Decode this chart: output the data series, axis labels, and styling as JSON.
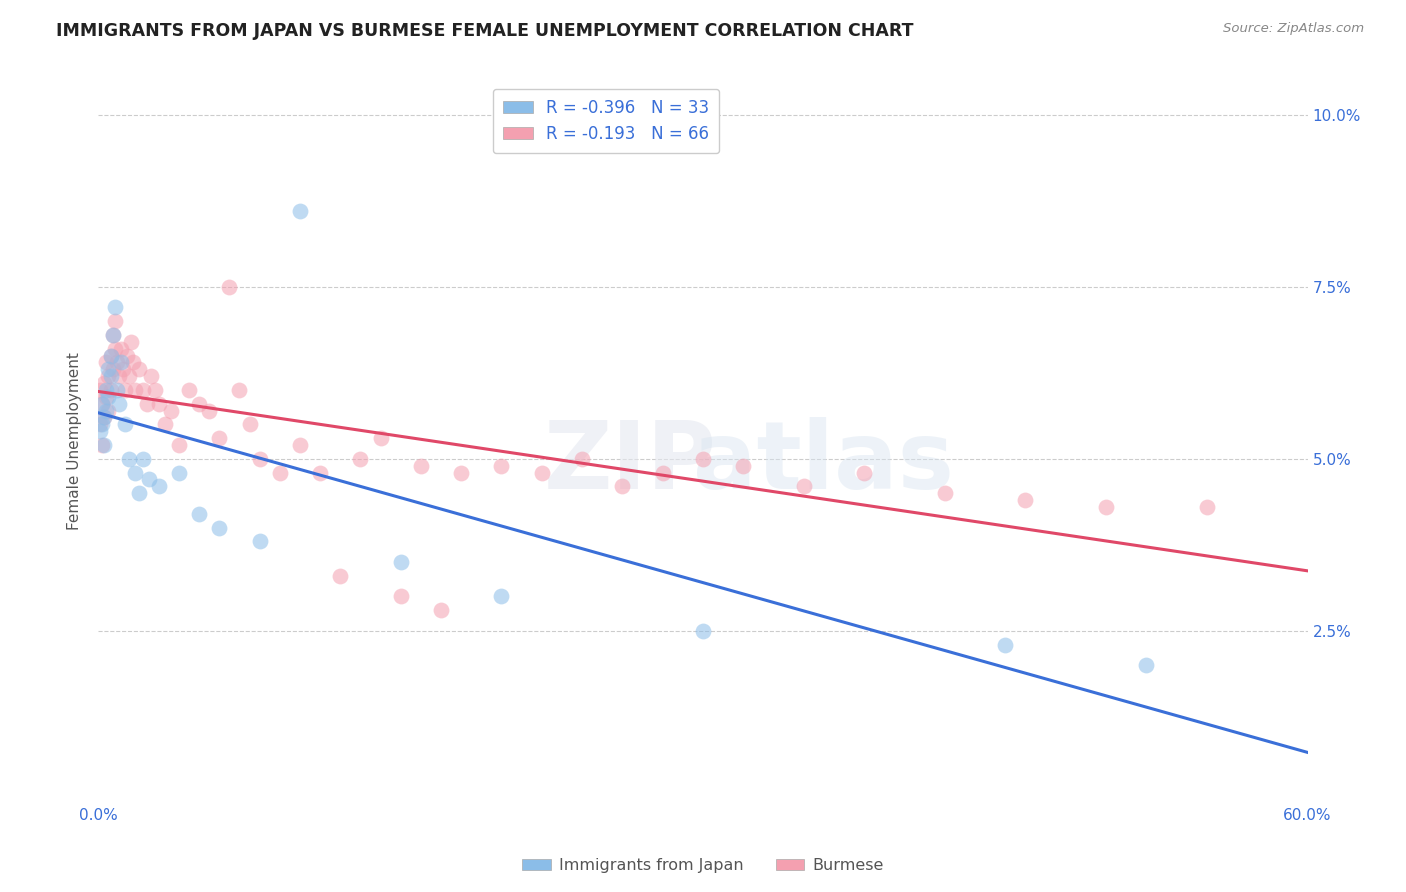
{
  "title": "IMMIGRANTS FROM JAPAN VS BURMESE FEMALE UNEMPLOYMENT CORRELATION CHART",
  "source": "Source: ZipAtlas.com",
  "ylabel": "Female Unemployment",
  "xlim": [
    0.0,
    0.6
  ],
  "ylim": [
    0.0,
    0.105
  ],
  "yticks": [
    0.025,
    0.05,
    0.075,
    0.1
  ],
  "ytick_labels": [
    "2.5%",
    "5.0%",
    "7.5%",
    "10.0%"
  ],
  "japan_color": "#8bbde8",
  "burmese_color": "#f4a0b0",
  "japan_line_color": "#3a6fd8",
  "burmese_line_color": "#e04868",
  "background_color": "#ffffff",
  "grid_color": "#cccccc",
  "japan_x": [
    0.001,
    0.002,
    0.002,
    0.003,
    0.003,
    0.004,
    0.004,
    0.005,
    0.005,
    0.006,
    0.006,
    0.007,
    0.008,
    0.009,
    0.01,
    0.011,
    0.013,
    0.015,
    0.018,
    0.02,
    0.022,
    0.025,
    0.03,
    0.04,
    0.05,
    0.06,
    0.08,
    0.1,
    0.15,
    0.2,
    0.3,
    0.45,
    0.52
  ],
  "japan_y": [
    0.054,
    0.058,
    0.055,
    0.052,
    0.056,
    0.06,
    0.057,
    0.063,
    0.059,
    0.065,
    0.062,
    0.068,
    0.072,
    0.06,
    0.058,
    0.064,
    0.055,
    0.05,
    0.048,
    0.045,
    0.05,
    0.047,
    0.046,
    0.048,
    0.042,
    0.04,
    0.038,
    0.086,
    0.035,
    0.03,
    0.025,
    0.023,
    0.02
  ],
  "burmese_x": [
    0.001,
    0.001,
    0.002,
    0.002,
    0.003,
    0.003,
    0.004,
    0.004,
    0.005,
    0.005,
    0.006,
    0.006,
    0.007,
    0.007,
    0.008,
    0.008,
    0.009,
    0.01,
    0.011,
    0.012,
    0.013,
    0.014,
    0.015,
    0.016,
    0.017,
    0.018,
    0.02,
    0.022,
    0.024,
    0.026,
    0.028,
    0.03,
    0.033,
    0.036,
    0.04,
    0.045,
    0.05,
    0.055,
    0.06,
    0.065,
    0.07,
    0.075,
    0.08,
    0.09,
    0.1,
    0.11,
    0.12,
    0.13,
    0.14,
    0.15,
    0.16,
    0.17,
    0.18,
    0.2,
    0.22,
    0.24,
    0.26,
    0.28,
    0.3,
    0.32,
    0.35,
    0.38,
    0.42,
    0.46,
    0.5,
    0.55
  ],
  "burmese_y": [
    0.055,
    0.06,
    0.052,
    0.058,
    0.056,
    0.061,
    0.059,
    0.064,
    0.057,
    0.062,
    0.06,
    0.065,
    0.063,
    0.068,
    0.066,
    0.07,
    0.064,
    0.062,
    0.066,
    0.063,
    0.06,
    0.065,
    0.062,
    0.067,
    0.064,
    0.06,
    0.063,
    0.06,
    0.058,
    0.062,
    0.06,
    0.058,
    0.055,
    0.057,
    0.052,
    0.06,
    0.058,
    0.057,
    0.053,
    0.075,
    0.06,
    0.055,
    0.05,
    0.048,
    0.052,
    0.048,
    0.033,
    0.05,
    0.053,
    0.03,
    0.049,
    0.028,
    0.048,
    0.049,
    0.048,
    0.05,
    0.046,
    0.048,
    0.05,
    0.049,
    0.046,
    0.048,
    0.045,
    0.044,
    0.043,
    0.043
  ]
}
